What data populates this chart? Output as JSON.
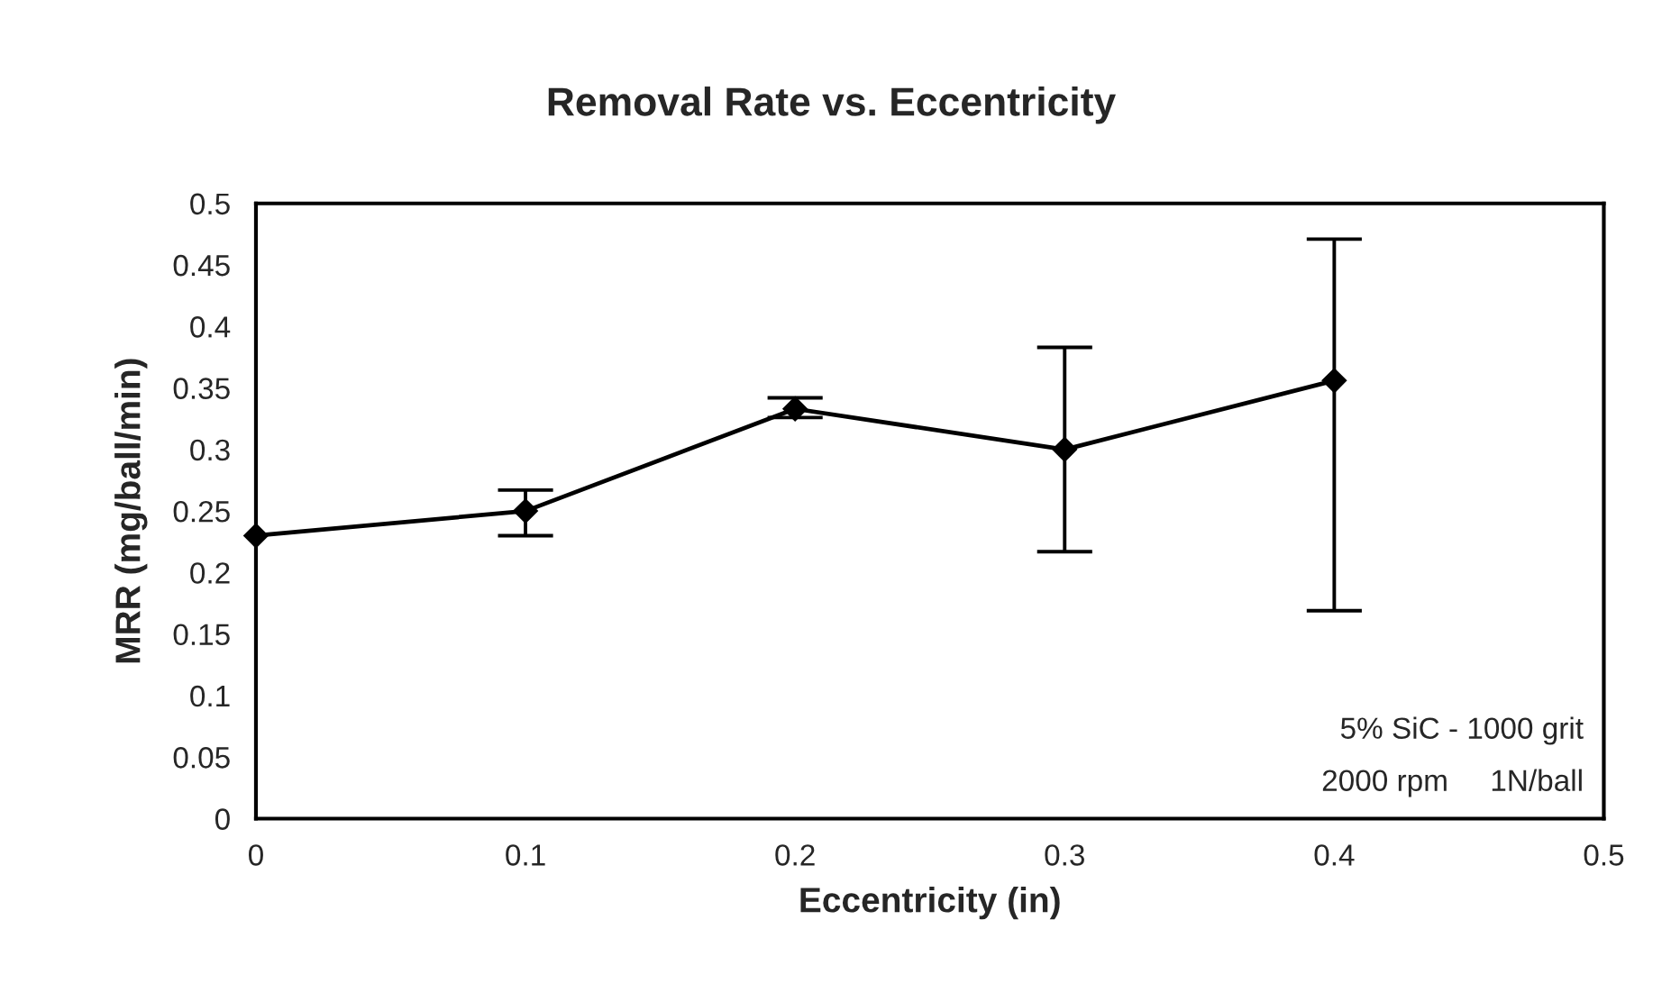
{
  "chart_data": {
    "type": "line",
    "title": "Removal Rate vs. Eccentricity",
    "xlabel": "Eccentricity (in)",
    "ylabel": "MRR (mg/ball/min)",
    "x": [
      0,
      0.1,
      0.2,
      0.3,
      0.4
    ],
    "series": [
      {
        "color": "#000000",
        "values": [
          0.23,
          0.25,
          0.333,
          0.3,
          0.356
        ],
        "errors": [
          null,
          [
            0.23,
            0.267
          ],
          [
            0.326,
            0.342
          ],
          [
            0.217,
            0.383
          ],
          [
            0.169,
            0.471
          ]
        ]
      }
    ],
    "xlim": [
      0,
      0.5
    ],
    "xticks": [
      0,
      0.1,
      0.2,
      0.3,
      0.4,
      0.5
    ],
    "ylim": [
      0,
      0.5
    ],
    "yticks": [
      0,
      0.05,
      0.1,
      0.15,
      0.2,
      0.25,
      0.3,
      0.35,
      0.4,
      0.45,
      0.5
    ],
    "grid": false,
    "legend": false,
    "marker": "diamond",
    "line_style": "solid",
    "annotations": [
      "5% SiC - 1000 grit",
      "2000 rpm     1N/ball"
    ]
  }
}
